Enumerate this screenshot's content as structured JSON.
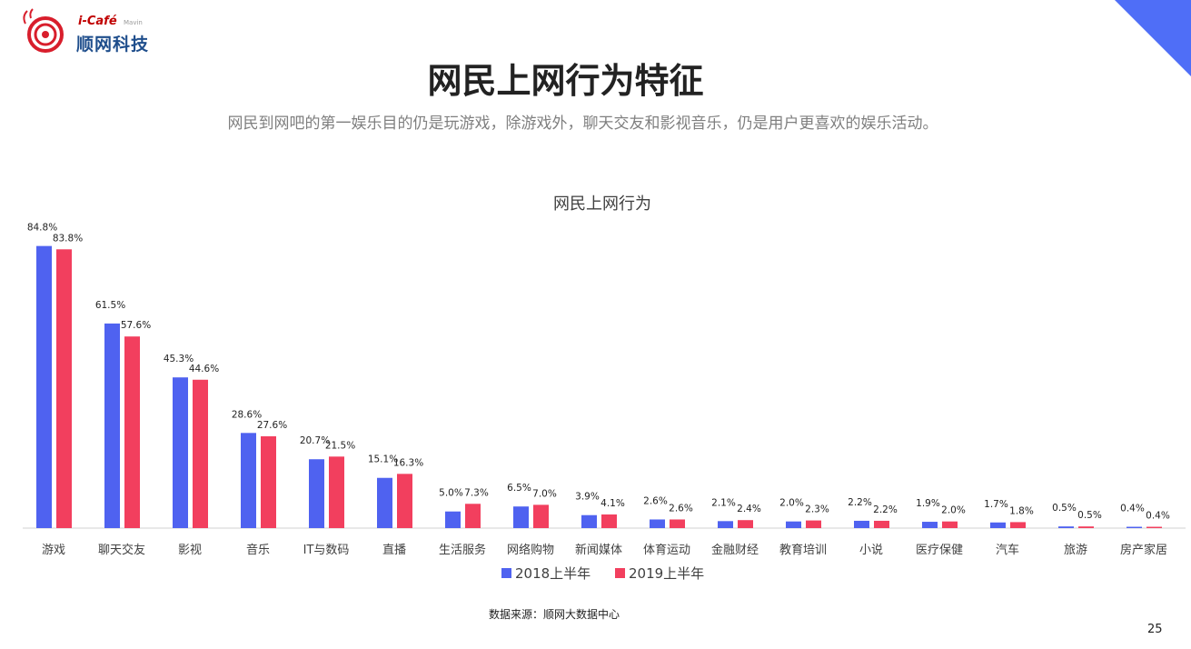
{
  "header": {
    "logo_top": "i-Café",
    "logo_mavin": "Mavin",
    "logo_brand": "顺网科技"
  },
  "page": {
    "title": "网民上网行为特征",
    "subtitle": "网民到网吧的第一娱乐目的仍是玩游戏，除游戏外，聊天交友和影视音乐，仍是用户更喜欢的娱乐活动。",
    "source": "数据来源：顺网大数据中心",
    "page_number": "25"
  },
  "colors": {
    "series1": "#4f62f0",
    "series2": "#f23f5e",
    "corner": "#4f6ef7"
  },
  "chart_data": {
    "type": "bar",
    "title": "网民上网行为",
    "categories": [
      "游戏",
      "聊天交友",
      "影视",
      "音乐",
      "IT与数码",
      "直播",
      "生活服务",
      "网络购物",
      "新闻媒体",
      "体育运动",
      "金融财经",
      "教育培训",
      "小说",
      "医疗保健",
      "汽车",
      "旅游",
      "房产家居"
    ],
    "series": [
      {
        "name": "2018上半年",
        "values": [
          84.8,
          61.5,
          45.3,
          28.6,
          20.7,
          15.1,
          5.0,
          6.5,
          3.9,
          2.6,
          2.1,
          2.0,
          2.2,
          1.9,
          1.7,
          0.5,
          0.4
        ]
      },
      {
        "name": "2019上半年",
        "values": [
          83.8,
          57.6,
          44.6,
          27.6,
          21.5,
          16.3,
          7.3,
          7.0,
          4.1,
          2.6,
          2.4,
          2.3,
          2.2,
          2.0,
          1.8,
          0.5,
          0.4
        ]
      }
    ],
    "value_labels": [
      [
        "84.8%",
        "61.5%",
        "45.3%",
        "28.6%",
        "20.7%",
        "15.1%",
        "5.0%",
        "6.5%",
        "3.9%",
        "2.6%",
        "2.1%",
        "2.0%",
        "2.2%",
        "1.9%",
        "1.7%",
        "0.5%",
        "0.4%"
      ],
      [
        "83.8%",
        "57.6%",
        "44.6%",
        "27.6%",
        "21.5%",
        "16.3%",
        "7.3%",
        "7.0%",
        "4.1%",
        "2.6%",
        "2.4%",
        "2.3%",
        "2.2%",
        "2.0%",
        "1.8%",
        "0.5%",
        "0.4%"
      ]
    ],
    "ylim": [
      0,
      100
    ],
    "legend_position": "bottom-center",
    "grid": false
  }
}
